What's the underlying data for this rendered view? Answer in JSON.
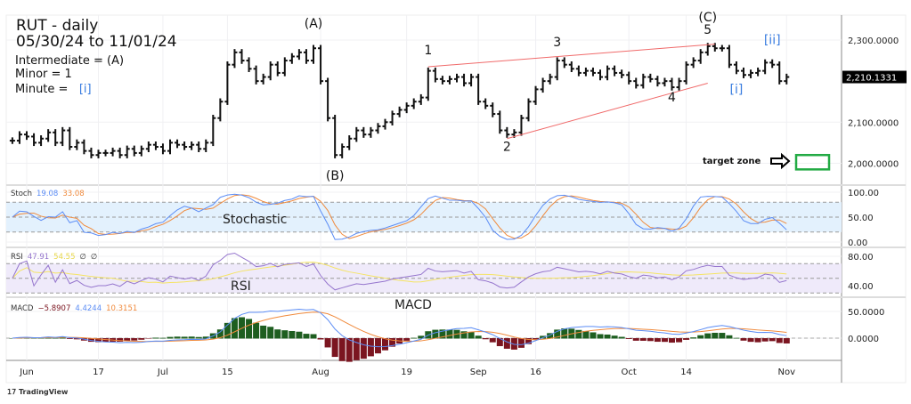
{
  "header": {
    "title": "RUT - daily",
    "range": "05/30/24 to 11/01/24",
    "intermediate": "Intermediate = (A)",
    "minor": "Minor = 1",
    "minute_prefix": "Minute =",
    "minute_label": "[i]"
  },
  "colors": {
    "up_down_bars": "#111111",
    "stoch_k": "#5b8cf5",
    "stoch_d": "#f08a3c",
    "rsi": "#9575cd",
    "rsi_ma": "#f5e463",
    "macd": "#5b8cf5",
    "signal": "#f08a3c",
    "hist_pos": "#1e5e20",
    "hist_neg": "#7b1520",
    "trendline": "#f06a6a",
    "target": "#22aa44"
  },
  "indicators": {
    "stoch": {
      "name": "Stoch",
      "k": "19.08",
      "d": "33.08",
      "label": "Stochastic"
    },
    "rsi": {
      "name": "RSI",
      "value": "47.91",
      "ma": "54.55",
      "z1": "∅",
      "z2": "∅",
      "label": "RSI"
    },
    "macd": {
      "name": "MACD",
      "hist": "−5.8907",
      "macd": "4.4244",
      "signal": "10.3151",
      "label": "MACD"
    }
  },
  "annotations": {
    "target_zone": "target zone",
    "watermark": "TradingView"
  },
  "chart_data": {
    "type": "bar",
    "title": "RUT - daily",
    "symbol": "RUT",
    "last_price": "2,210.1331",
    "ylim": [
      1960,
      2330
    ],
    "y_ticks": [
      {
        "v": 2300,
        "label": "2,300.0000"
      },
      {
        "v": 2100,
        "label": "2,100.0000"
      },
      {
        "v": 2000,
        "label": "2,000.0000"
      }
    ],
    "stoch_ticks": [
      {
        "v": 100,
        "label": "100.00"
      },
      {
        "v": 50,
        "label": "50.00"
      },
      {
        "v": 0,
        "label": "0.00"
      }
    ],
    "rsi_ticks": [
      {
        "v": 80,
        "label": "80.00"
      },
      {
        "v": 40,
        "label": "40.00"
      }
    ],
    "macd_ticks": [
      {
        "v": 50,
        "label": "50.0000"
      },
      {
        "v": 0,
        "label": "0.0000"
      }
    ],
    "x_ticks": [
      {
        "i": 2,
        "label": "Jun"
      },
      {
        "i": 12,
        "label": "17"
      },
      {
        "i": 21,
        "label": "Jul"
      },
      {
        "i": 30,
        "label": "15"
      },
      {
        "i": 43,
        "label": "Aug"
      },
      {
        "i": 55,
        "label": "19"
      },
      {
        "i": 65,
        "label": "Sep"
      },
      {
        "i": 73,
        "label": "16"
      },
      {
        "i": 86,
        "label": "Oct"
      },
      {
        "i": 94,
        "label": "14"
      },
      {
        "i": 108,
        "label": "Nov"
      }
    ],
    "close": [
      2055,
      2070,
      2065,
      2050,
      2060,
      2075,
      2050,
      2080,
      2040,
      2050,
      2030,
      2020,
      2025,
      2025,
      2030,
      2020,
      2035,
      2025,
      2035,
      2045,
      2040,
      2030,
      2050,
      2045,
      2040,
      2045,
      2035,
      2050,
      2110,
      2150,
      2240,
      2270,
      2250,
      2230,
      2200,
      2210,
      2240,
      2220,
      2250,
      2260,
      2270,
      2250,
      2280,
      2200,
      2110,
      2020,
      2040,
      2060,
      2080,
      2070,
      2080,
      2090,
      2100,
      2120,
      2130,
      2140,
      2150,
      2160,
      2225,
      2205,
      2200,
      2205,
      2210,
      2195,
      2210,
      2150,
      2140,
      2120,
      2080,
      2070,
      2075,
      2110,
      2150,
      2180,
      2200,
      2210,
      2250,
      2240,
      2230,
      2220,
      2225,
      2220,
      2210,
      2230,
      2220,
      2215,
      2200,
      2190,
      2210,
      2205,
      2195,
      2200,
      2185,
      2200,
      2240,
      2250,
      2270,
      2285,
      2280,
      2280,
      2240,
      2225,
      2215,
      2220,
      2225,
      2245,
      2240,
      2200,
      2210
    ],
    "wave_labels": [
      {
        "text": "(A)",
        "i": 42,
        "p": 2330,
        "color": "#111"
      },
      {
        "text": "(B)",
        "i": 45,
        "p": 1960,
        "color": "#111"
      },
      {
        "text": "1",
        "i": 58,
        "p": 2265,
        "color": "#111"
      },
      {
        "text": "2",
        "i": 69,
        "p": 2030,
        "color": "#111"
      },
      {
        "text": "3",
        "i": 76,
        "p": 2285,
        "color": "#111"
      },
      {
        "text": "4",
        "i": 92,
        "p": 2150,
        "color": "#111"
      },
      {
        "text": "(C)",
        "i": 97,
        "p": 2345,
        "color": "#111"
      },
      {
        "text": "5",
        "i": 97,
        "p": 2315,
        "color": "#111"
      },
      {
        "text": "[i]",
        "i": 101,
        "p": 2170,
        "color": "#3a7de0"
      },
      {
        "text": "[ii]",
        "i": 106,
        "p": 2290,
        "color": "#3a7de0"
      }
    ],
    "trendlines": [
      {
        "from": {
          "i": 58,
          "p": 2235
        },
        "to": {
          "i": 98,
          "p": 2290
        }
      },
      {
        "from": {
          "i": 69,
          "p": 2060
        },
        "to": {
          "i": 97,
          "p": 2195
        }
      }
    ],
    "target_zone_price": [
      1985,
      2020
    ]
  }
}
